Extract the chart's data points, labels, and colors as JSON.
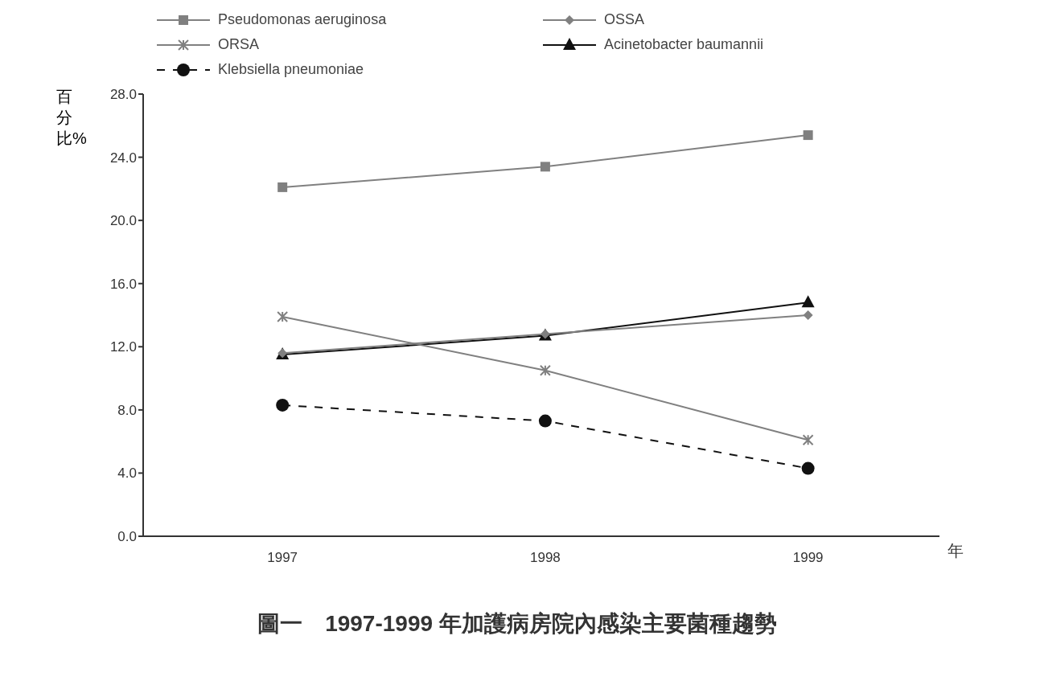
{
  "chart_data": {
    "type": "line",
    "title": "圖一　1997-1999 年加護病房院內感染主要菌種趨勢",
    "xlabel": "年",
    "ylabel": "百分比%",
    "categories": [
      "1997",
      "1998",
      "1999"
    ],
    "series": [
      {
        "name": "Pseudomonas aeruginosa",
        "color": "#808080",
        "marker": "square",
        "values": [
          22.1,
          23.4,
          25.4
        ]
      },
      {
        "name": "OSSA",
        "color": "#808080",
        "marker": "diamond",
        "values": [
          11.6,
          12.8,
          14.0
        ]
      },
      {
        "name": "ORSA",
        "color": "#808080",
        "marker": "cross",
        "values": [
          13.9,
          10.5,
          6.1
        ]
      },
      {
        "name": "Acinetobacter baumannii",
        "color": "#111111",
        "marker": "triangle",
        "values": [
          11.5,
          12.7,
          14.8
        ]
      },
      {
        "name": "Klebsiella pneumoniae",
        "color": "#111111",
        "marker": "circle",
        "line_style": "dashed",
        "values": [
          8.3,
          7.3,
          4.3
        ]
      }
    ],
    "ylim": [
      0,
      28
    ],
    "yticks": [
      {
        "value": 0,
        "label": "0.0"
      },
      {
        "value": 4,
        "label": "4.0"
      },
      {
        "value": 8,
        "label": "8.0"
      },
      {
        "value": 12,
        "label": "12.0"
      },
      {
        "value": 16,
        "label": "16.0"
      },
      {
        "value": 20,
        "label": "20.0"
      },
      {
        "value": 24,
        "label": "24.0"
      },
      {
        "value": 28,
        "label": "28.0"
      }
    ],
    "grid": false,
    "legend": "top"
  }
}
